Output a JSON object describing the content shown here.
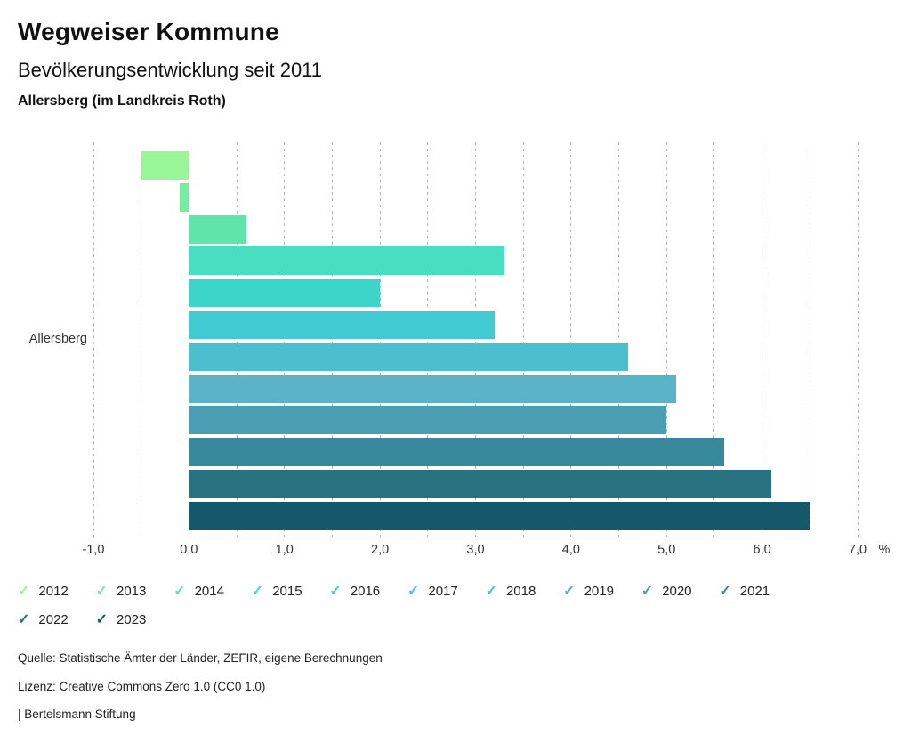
{
  "header": {
    "title": "Wegweiser Kommune",
    "subtitle": "Bevölkerungsentwicklung seit 2011",
    "region": "Allersberg (im Landkreis Roth)"
  },
  "chart_data": {
    "type": "bar",
    "orientation": "horizontal",
    "title": "Bevölkerungsentwicklung seit 2011",
    "group_label": "Allersberg",
    "unit": "%",
    "categories": [
      "2012",
      "2013",
      "2014",
      "2015",
      "2016",
      "2017",
      "2018",
      "2019",
      "2020",
      "2021",
      "2022",
      "2023"
    ],
    "values": [
      -0.5,
      -0.1,
      0.6,
      3.3,
      2.0,
      3.2,
      4.6,
      5.1,
      5.0,
      5.6,
      6.1,
      6.5
    ],
    "colors": [
      "#98F698",
      "#77EDA1",
      "#5FE5AA",
      "#49DEC2",
      "#3DD5CA",
      "#41CAD1",
      "#4BBFCE",
      "#5BB3C7",
      "#4A9EB1",
      "#38899B",
      "#277180",
      "#15586B"
    ],
    "xlim": [
      -1.0,
      7.0
    ],
    "x_ticks": [
      {
        "value": -1,
        "label": "-1,0"
      },
      {
        "value": 0,
        "label": "0,0"
      },
      {
        "value": 1,
        "label": "1,0"
      },
      {
        "value": 2,
        "label": "2,0"
      },
      {
        "value": 3,
        "label": "3,0"
      },
      {
        "value": 4,
        "label": "4,0"
      },
      {
        "value": 5,
        "label": "5,0"
      },
      {
        "value": 6,
        "label": "6,0"
      },
      {
        "value": 7,
        "label": "7,0"
      }
    ],
    "gridline_step": 0.5,
    "grid": "vertical-dashed",
    "legend_position": "bottom"
  },
  "icons": {
    "legend_check": "✓"
  },
  "footer": {
    "source": "Quelle: Statistische Ämter der Länder, ZEFIR, eigene Berechnungen",
    "license": "Lizenz: Creative Commons Zero 1.0 (CC0 1.0)",
    "attribution": "| Bertelsmann Stiftung"
  }
}
